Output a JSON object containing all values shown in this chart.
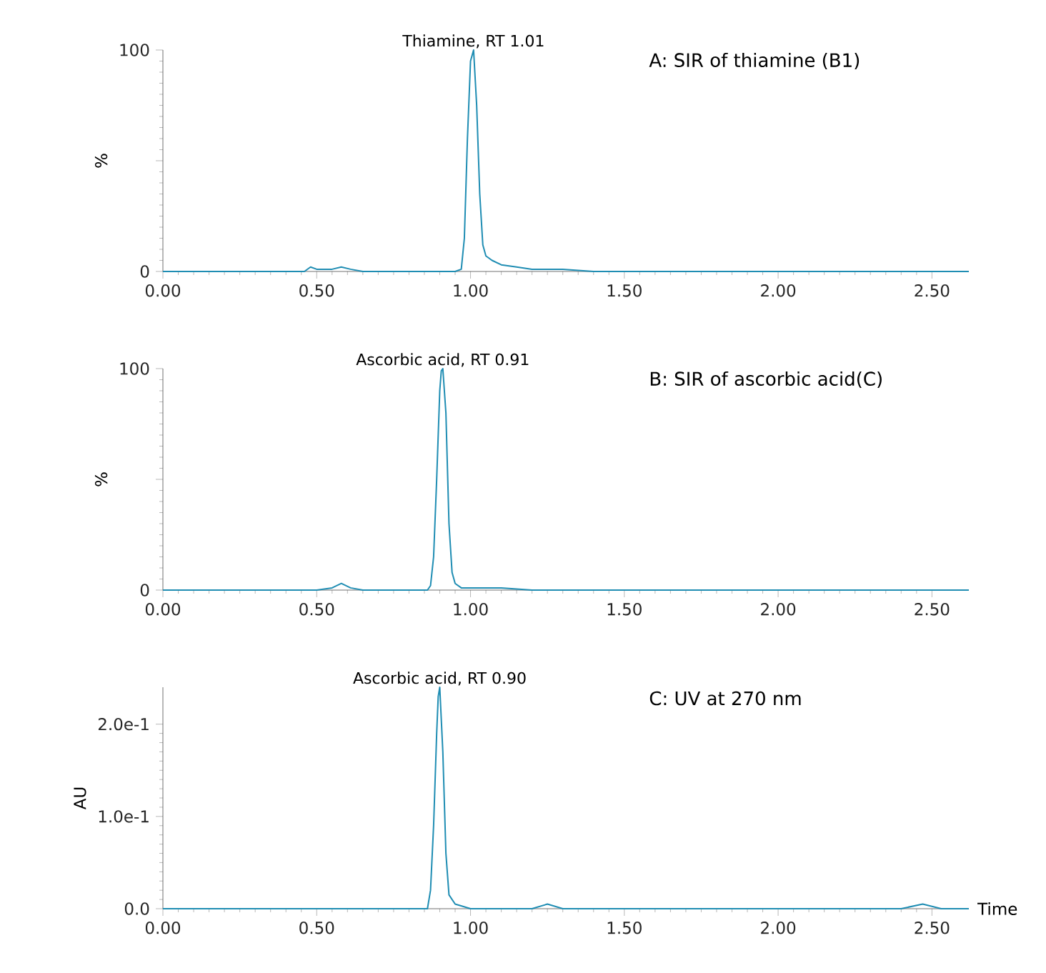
{
  "chart_data": [
    {
      "type": "line",
      "ylabel": "%",
      "annotations": [
        {
          "text": "Thiamine, RT 1.01",
          "x": 1.01,
          "y": 100
        },
        "A: SIR of thiamine (B1)"
      ],
      "x": [
        0,
        0.2,
        0.4,
        0.46,
        0.48,
        0.5,
        0.55,
        0.58,
        0.61,
        0.65,
        0.8,
        0.95,
        0.97,
        0.98,
        0.99,
        1.0,
        1.01,
        1.02,
        1.03,
        1.04,
        1.05,
        1.07,
        1.1,
        1.15,
        1.2,
        1.3,
        1.4,
        1.6,
        2.0,
        2.4,
        2.62
      ],
      "series": [
        {
          "color": "#1f8db3",
          "values": [
            0,
            0,
            0,
            0,
            2,
            1,
            1,
            2,
            1,
            0,
            0,
            0,
            1,
            15,
            60,
            95,
            100,
            75,
            35,
            12,
            7,
            5,
            3,
            2,
            1,
            1,
            0,
            0,
            0,
            0,
            0
          ]
        }
      ],
      "xlim": [
        0,
        2.62
      ],
      "ylim": [
        0,
        100
      ],
      "xticks": [
        {
          "value": 0,
          "label": "0.00"
        },
        {
          "value": 0.5,
          "label": "0.50"
        },
        {
          "value": 1,
          "label": "1.00"
        },
        {
          "value": 1.5,
          "label": "1.50"
        },
        {
          "value": 2,
          "label": "2.00"
        },
        {
          "value": 2.5,
          "label": "2.50"
        }
      ],
      "yticks": [
        0,
        {
          "value": 50,
          "label": null
        },
        100
      ]
    },
    {
      "type": "line",
      "ylabel": "%",
      "annotations": [
        {
          "text": "Ascorbic acid, RT 0.91",
          "x": 0.91,
          "y": 100
        },
        "B: SIR of ascorbic acid(C)"
      ],
      "x": [
        0,
        0.3,
        0.5,
        0.55,
        0.58,
        0.61,
        0.65,
        0.8,
        0.86,
        0.87,
        0.88,
        0.89,
        0.9,
        0.905,
        0.91,
        0.92,
        0.93,
        0.94,
        0.95,
        0.97,
        1.0,
        1.1,
        1.2,
        1.5,
        2.0,
        2.62
      ],
      "series": [
        {
          "color": "#1f8db3",
          "values": [
            0,
            0,
            0,
            1,
            3,
            1,
            0,
            0,
            0,
            2,
            15,
            50,
            90,
            99,
            100,
            80,
            30,
            8,
            3,
            1,
            1,
            1,
            0,
            0,
            0,
            0
          ]
        }
      ],
      "xlim": [
        0,
        2.62
      ],
      "ylim": [
        0,
        100
      ],
      "xticks": [
        {
          "value": 0,
          "label": "0.00"
        },
        {
          "value": 0.5,
          "label": "0.50"
        },
        {
          "value": 1,
          "label": "1.00"
        },
        {
          "value": 1.5,
          "label": "1.50"
        },
        {
          "value": 2,
          "label": "2.00"
        },
        {
          "value": 2.5,
          "label": "2.50"
        }
      ],
      "yticks": [
        0,
        {
          "value": 50,
          "label": null
        },
        100
      ]
    },
    {
      "type": "line",
      "ylabel": "AU",
      "xlabel": "Time",
      "annotations": [
        {
          "text": "Ascorbic acid, RT 0.90",
          "x": 0.9,
          "y": 0.24
        },
        "C: UV at 270 nm"
      ],
      "x": [
        0,
        0.5,
        0.8,
        0.86,
        0.87,
        0.88,
        0.89,
        0.895,
        0.9,
        0.91,
        0.92,
        0.93,
        0.95,
        1.0,
        1.2,
        1.25,
        1.3,
        1.8,
        2.4,
        2.47,
        2.53,
        2.62
      ],
      "series": [
        {
          "color": "#1f8db3",
          "values": [
            0,
            0,
            0,
            0,
            0.02,
            0.09,
            0.19,
            0.23,
            0.24,
            0.17,
            0.06,
            0.015,
            0.005,
            0,
            0,
            0.005,
            0,
            0,
            0,
            0.005,
            0,
            0
          ]
        }
      ],
      "xlim": [
        0,
        2.62
      ],
      "ylim": [
        0,
        0.24
      ],
      "xticks": [
        {
          "value": 0,
          "label": "0.00"
        },
        {
          "value": 0.5,
          "label": "0.50"
        },
        {
          "value": 1,
          "label": "1.00"
        },
        {
          "value": 1.5,
          "label": "1.50"
        },
        {
          "value": 2,
          "label": "2.00"
        },
        {
          "value": 2.5,
          "label": "2.50"
        }
      ],
      "yticks": [
        {
          "value": 0,
          "label": "0.0"
        },
        {
          "value": 0.1,
          "label": "1.0e-1"
        },
        {
          "value": 0.2,
          "label": "2.0e-1"
        }
      ]
    }
  ]
}
